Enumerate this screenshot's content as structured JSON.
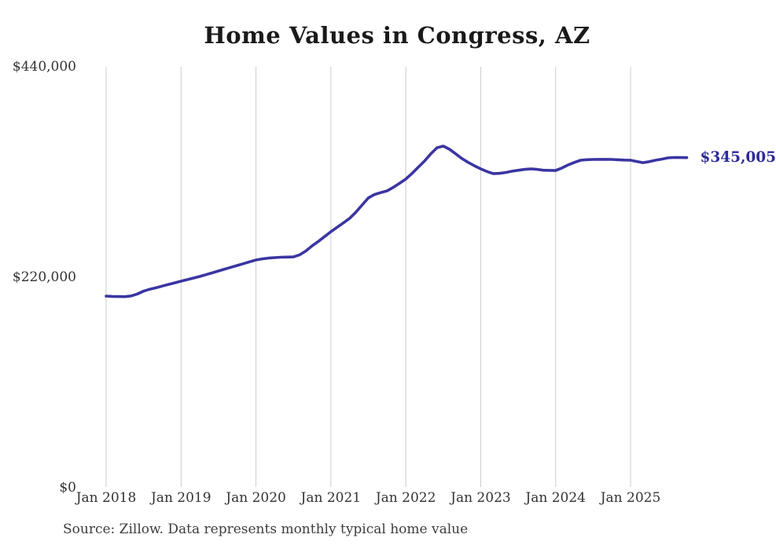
{
  "chart_data": {
    "type": "line",
    "title": "Home Values in Congress, AZ",
    "xlabel": "",
    "ylabel": "",
    "ylim": [
      0,
      440000
    ],
    "grid": "vertical-only",
    "legend": "none",
    "colors": {
      "line": "#3b35a2",
      "end_label": "#2e2a9d",
      "gridline": "#cccccc",
      "tick_text": "#333333",
      "title_text": "#1a1a1a"
    },
    "y_ticks": [
      {
        "label": "$440,000",
        "value": 440000
      },
      {
        "label": "$220,000",
        "value": 220000
      },
      {
        "label": "$0",
        "value": 0
      }
    ],
    "x_ticks": [
      {
        "label": "Jan 2018",
        "month_index": 0
      },
      {
        "label": "Jan 2019",
        "month_index": 12
      },
      {
        "label": "Jan 2020",
        "month_index": 24
      },
      {
        "label": "Jan 2021",
        "month_index": 36
      },
      {
        "label": "Jan 2022",
        "month_index": 48
      },
      {
        "label": "Jan 2023",
        "month_index": 60
      },
      {
        "label": "Jan 2024",
        "month_index": 72
      },
      {
        "label": "Jan 2025",
        "month_index": 84
      }
    ],
    "end_label": {
      "text": "$345,005",
      "value": 345005
    },
    "x": [
      "2018-01",
      "2018-02",
      "2018-03",
      "2018-04",
      "2018-05",
      "2018-06",
      "2018-07",
      "2018-08",
      "2018-09",
      "2018-10",
      "2018-11",
      "2018-12",
      "2019-01",
      "2019-02",
      "2019-03",
      "2019-04",
      "2019-05",
      "2019-06",
      "2019-07",
      "2019-08",
      "2019-09",
      "2019-10",
      "2019-11",
      "2019-12",
      "2020-01",
      "2020-02",
      "2020-03",
      "2020-04",
      "2020-05",
      "2020-06",
      "2020-07",
      "2020-08",
      "2020-09",
      "2020-10",
      "2020-11",
      "2020-12",
      "2021-01",
      "2021-02",
      "2021-03",
      "2021-04",
      "2021-05",
      "2021-06",
      "2021-07",
      "2021-08",
      "2021-09",
      "2021-10",
      "2021-11",
      "2021-12",
      "2022-01",
      "2022-02",
      "2022-03",
      "2022-04",
      "2022-05",
      "2022-06",
      "2022-07",
      "2022-08",
      "2022-09",
      "2022-10",
      "2022-11",
      "2022-12",
      "2023-01",
      "2023-02",
      "2023-03",
      "2023-04",
      "2023-05",
      "2023-06",
      "2023-07",
      "2023-08",
      "2023-09",
      "2023-10",
      "2023-11",
      "2023-12",
      "2024-01",
      "2024-02",
      "2024-03",
      "2024-04",
      "2024-05",
      "2024-06",
      "2024-07",
      "2024-08",
      "2024-09",
      "2024-10",
      "2024-11",
      "2024-12",
      "2025-01",
      "2025-02",
      "2025-03",
      "2025-04",
      "2025-05",
      "2025-06",
      "2025-07",
      "2025-08",
      "2025-09",
      "2025-10"
    ],
    "values": [
      200300,
      200000,
      199800,
      199700,
      200500,
      202500,
      205500,
      207500,
      209000,
      210800,
      212500,
      214200,
      215900,
      217500,
      219200,
      220800,
      222700,
      224600,
      226600,
      228500,
      230400,
      232300,
      234200,
      236200,
      238100,
      239200,
      240000,
      240500,
      240900,
      241100,
      241300,
      243500,
      247500,
      252800,
      257500,
      262500,
      267600,
      272200,
      276800,
      281600,
      288000,
      295500,
      302900,
      306500,
      308500,
      310300,
      314000,
      318200,
      322600,
      328500,
      335000,
      341500,
      349000,
      355400,
      357100,
      353800,
      349000,
      344000,
      340000,
      336500,
      333300,
      330500,
      328300,
      328600,
      329500,
      330800,
      331800,
      332700,
      333300,
      332800,
      331900,
      331700,
      331600,
      334200,
      337400,
      340000,
      342300,
      342900,
      343100,
      343200,
      343200,
      343100,
      342800,
      342500,
      342300,
      341000,
      339800,
      340800,
      342300,
      343500,
      344800,
      345200,
      345100,
      345005
    ]
  },
  "footer": {
    "source": "Source: Zillow. Data represents monthly typical home value"
  }
}
